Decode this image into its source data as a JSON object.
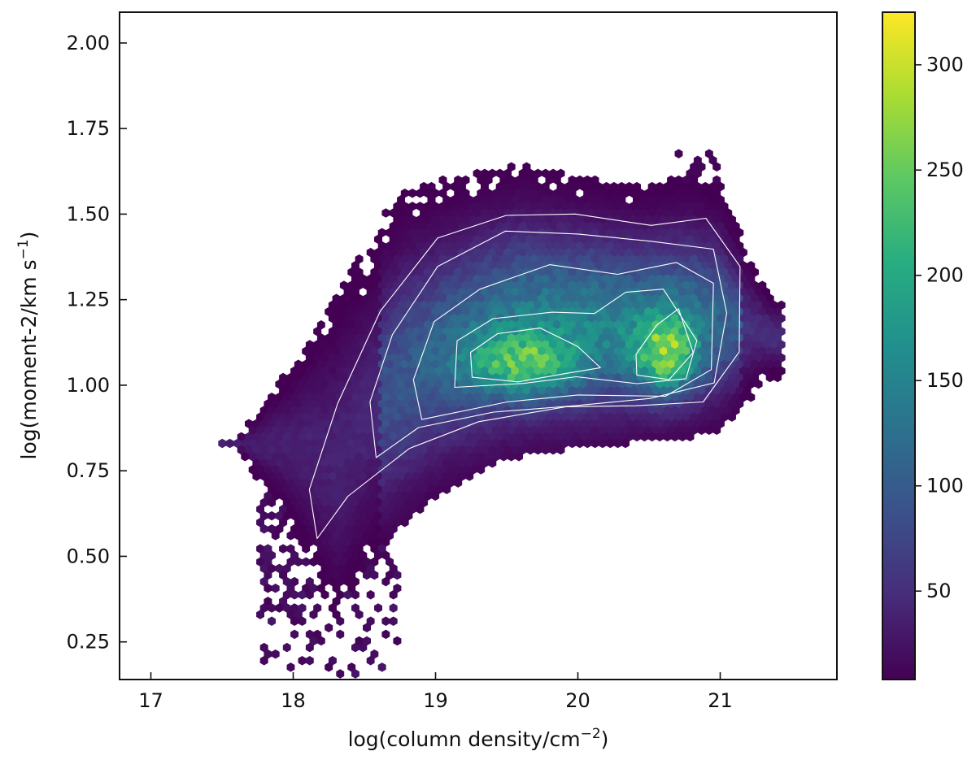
{
  "chart_data": {
    "type": "heatmap",
    "subtype": "hexbin-density",
    "title": "",
    "xlabel": "log(column density/cm",
    "xlabel_exp": "−2",
    "xlabel_close": ")",
    "ylabel": "log(moment-2/km s",
    "ylabel_exp": "−1",
    "ylabel_close": ")",
    "xlim": [
      16.78,
      21.82
    ],
    "ylim": [
      0.14,
      2.09
    ],
    "xticks": [
      17,
      18,
      19,
      20,
      21
    ],
    "xtick_labels": [
      "17",
      "18",
      "19",
      "20",
      "21"
    ],
    "yticks": [
      0.25,
      0.5,
      0.75,
      1.0,
      1.25,
      1.5,
      1.75,
      2.0
    ],
    "ytick_labels": [
      "0.25",
      "0.50",
      "0.75",
      "1.00",
      "1.25",
      "1.50",
      "1.75",
      "2.00"
    ],
    "colorbar": {
      "colormap": "viridis",
      "range": [
        8,
        325
      ],
      "ticks": [
        50,
        100,
        150,
        200,
        250,
        300
      ],
      "tick_labels": [
        "50",
        "100",
        "150",
        "200",
        "250",
        "300"
      ]
    },
    "contour_color": "#ffffff",
    "density_peaks": [
      {
        "x": 19.55,
        "y": 1.06,
        "count": 280
      },
      {
        "x": 20.65,
        "y": 1.08,
        "count": 320
      }
    ],
    "grid": false
  }
}
